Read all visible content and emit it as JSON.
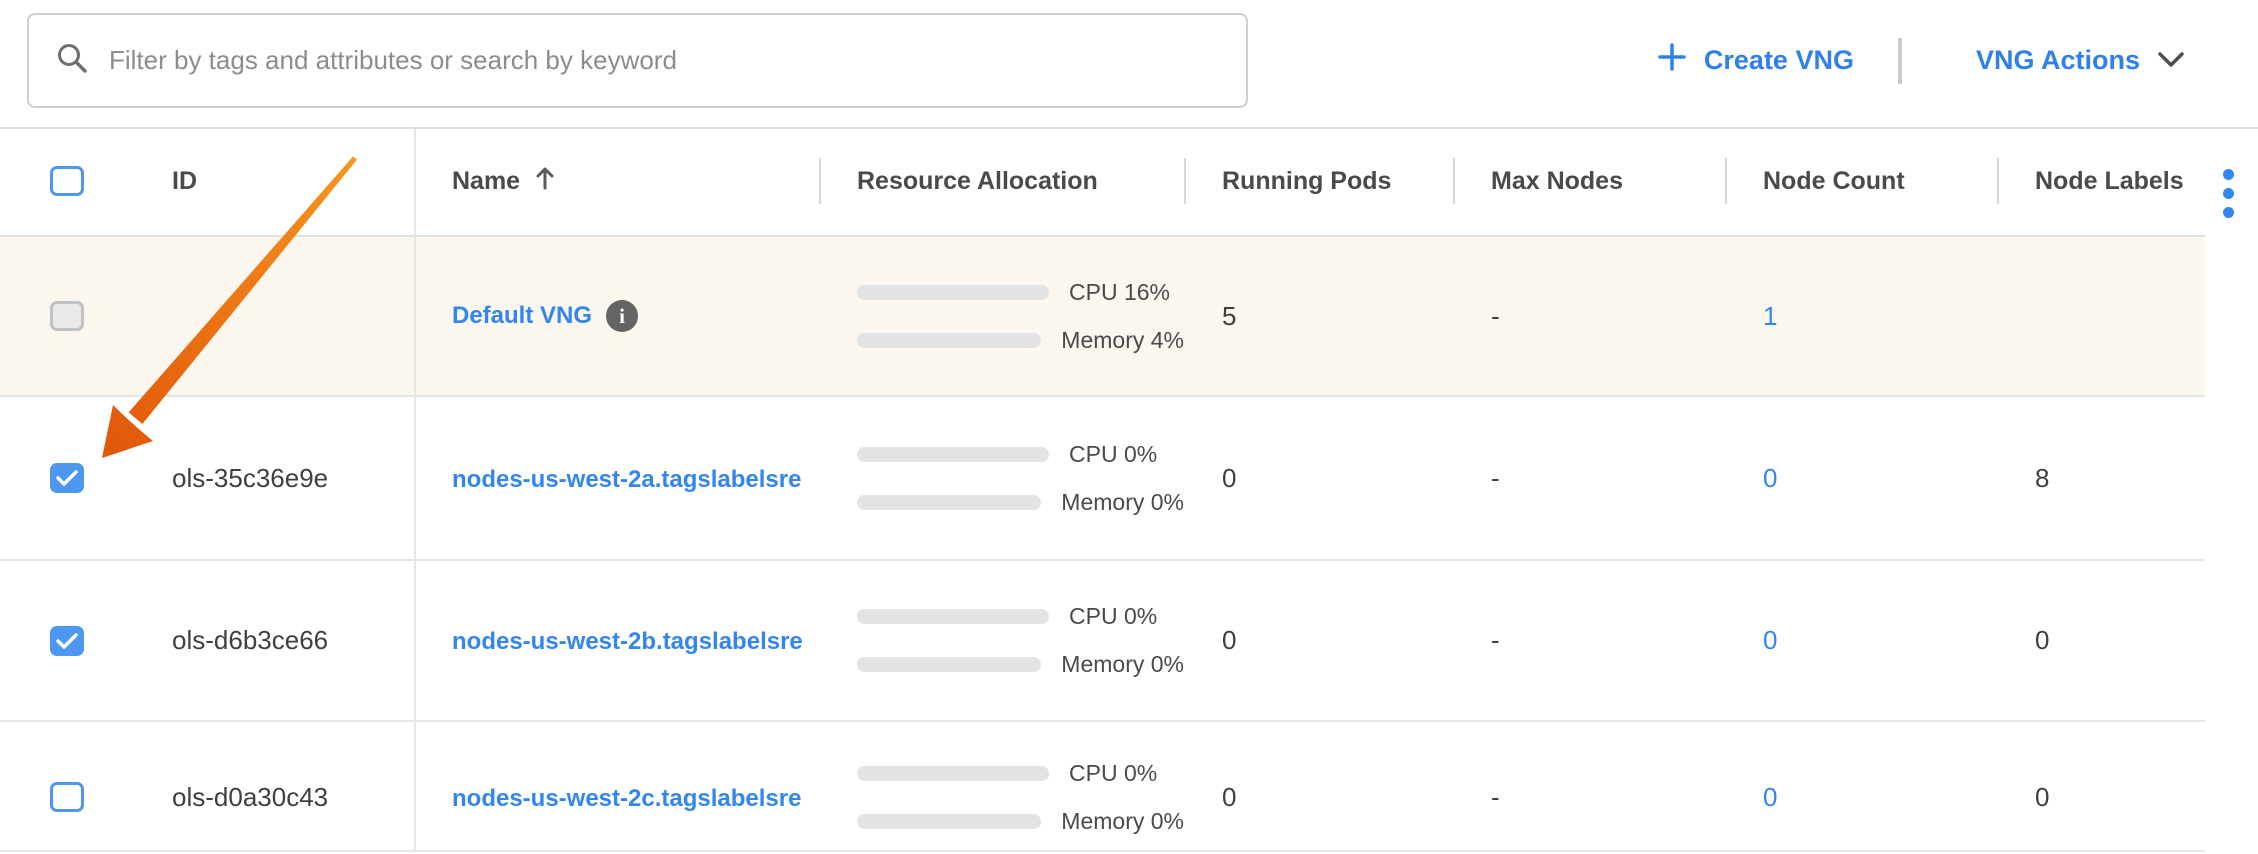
{
  "toolbar": {
    "search_placeholder": "Filter by tags and attributes or search by keyword",
    "search_value": "",
    "create_vng_label": "Create VNG",
    "vng_actions_label": "VNG Actions"
  },
  "table": {
    "columns": {
      "id": "ID",
      "name": "Name",
      "resource": "Resource Allocation",
      "running_pods": "Running Pods",
      "max_nodes": "Max Nodes",
      "node_count": "Node Count",
      "node_labels": "Node Labels"
    },
    "sort": {
      "column": "Name",
      "direction": "ascending"
    },
    "select_all_checked": false,
    "rows": [
      {
        "id": "",
        "name": "Default VNG",
        "has_info_icon": true,
        "cpu_percent": 16,
        "memory_percent": 4,
        "cpu_label": "CPU 16%",
        "memory_label": "Memory 4%",
        "running_pods": "5",
        "max_nodes": "-",
        "node_count": "1",
        "node_labels": "",
        "checkbox_state": "disabled",
        "highlighted": true
      },
      {
        "id": "ols-35c36e9e",
        "name": "nodes-us-west-2a.tagslabelsre",
        "cpu_percent": 0,
        "memory_percent": 0,
        "cpu_label": "CPU 0%",
        "memory_label": "Memory 0%",
        "running_pods": "0",
        "max_nodes": "-",
        "node_count": "0",
        "node_labels": "8",
        "checkbox_state": "checked",
        "annotated_by_arrow": true
      },
      {
        "id": "ols-d6b3ce66",
        "name": "nodes-us-west-2b.tagslabelsre",
        "cpu_percent": 0,
        "memory_percent": 0,
        "cpu_label": "CPU 0%",
        "memory_label": "Memory 0%",
        "running_pods": "0",
        "max_nodes": "-",
        "node_count": "0",
        "node_labels": "0",
        "checkbox_state": "checked"
      },
      {
        "id": "ols-d0a30c43",
        "name": "nodes-us-west-2c.tagslabelsre",
        "cpu_percent": 0,
        "memory_percent": 0,
        "cpu_label": "CPU 0%",
        "memory_label": "Memory 0%",
        "running_pods": "0",
        "max_nodes": "-",
        "node_count": "0",
        "node_labels": "0",
        "checkbox_state": "unchecked"
      }
    ]
  },
  "annotation": {
    "type": "arrow",
    "color_tail": "#F7951F",
    "color_head": "#E1560A"
  },
  "colors": {
    "accent_blue": "#3385F0",
    "bar_blue": "#4285F4",
    "bar_green": "#5CB870",
    "row_highlight": "#FBF6EE"
  }
}
